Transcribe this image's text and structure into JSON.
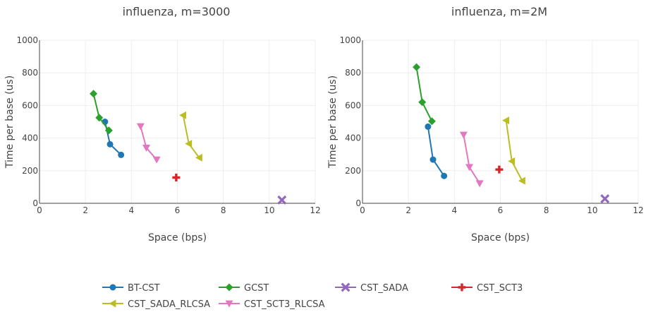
{
  "chart_data": [
    {
      "type": "line",
      "title": "influenza, m=3000",
      "xlabel": "Space (bps)",
      "ylabel": "Time per base (us)",
      "xlim": [
        0,
        12
      ],
      "ylim": [
        0,
        1000
      ],
      "xticks": [
        "0",
        "2",
        "4",
        "6",
        "8",
        "10",
        "12"
      ],
      "yticks": [
        "0",
        "200",
        "400",
        "600",
        "800",
        "1000"
      ],
      "grid": true,
      "series": [
        {
          "name": "BT-CST",
          "color": "#1f77b4",
          "marker": "circle",
          "x": [
            2.85,
            3.07,
            3.55
          ],
          "y": [
            500,
            362,
            297
          ]
        },
        {
          "name": "GCST",
          "color": "#2ca02c",
          "marker": "diamond",
          "x": [
            2.35,
            2.6,
            3.02
          ],
          "y": [
            672,
            525,
            447
          ]
        },
        {
          "name": "CST_SADA",
          "color": "#9467bd",
          "marker": "x",
          "x": [
            10.55
          ],
          "y": [
            20
          ]
        },
        {
          "name": "CST_SCT3",
          "color": "#d62728",
          "marker": "cross",
          "x": [
            5.95
          ],
          "y": [
            158
          ]
        },
        {
          "name": "CST_SADA_RLCSA",
          "color": "#bcbd22",
          "marker": "triangle-left",
          "x": [
            6.25,
            6.5,
            6.95
          ],
          "y": [
            540,
            365,
            280
          ]
        },
        {
          "name": "CST_SCT3_RLCSA",
          "color": "#e377c2",
          "marker": "triangle-down",
          "x": [
            4.4,
            4.65,
            5.1
          ],
          "y": [
            472,
            340,
            268
          ]
        }
      ]
    },
    {
      "type": "line",
      "title": "influenza, m=2M",
      "xlabel": "Space (bps)",
      "ylabel": "Time per base (us)",
      "xlim": [
        0,
        12
      ],
      "ylim": [
        0,
        1000
      ],
      "xticks": [
        "0",
        "2",
        "4",
        "6",
        "8",
        "10",
        "12"
      ],
      "yticks": [
        "0",
        "200",
        "400",
        "600",
        "800",
        "1000"
      ],
      "grid": true,
      "series": [
        {
          "name": "BT-CST",
          "color": "#1f77b4",
          "marker": "circle",
          "x": [
            2.85,
            3.07,
            3.55
          ],
          "y": [
            470,
            268,
            168
          ]
        },
        {
          "name": "GCST",
          "color": "#2ca02c",
          "marker": "diamond",
          "x": [
            2.35,
            2.6,
            3.02
          ],
          "y": [
            835,
            620,
            503
          ]
        },
        {
          "name": "CST_SADA",
          "color": "#9467bd",
          "marker": "x",
          "x": [
            10.55
          ],
          "y": [
            28
          ]
        },
        {
          "name": "CST_SCT3",
          "color": "#d62728",
          "marker": "cross",
          "x": [
            5.95
          ],
          "y": [
            207
          ]
        },
        {
          "name": "CST_SADA_RLCSA",
          "color": "#bcbd22",
          "marker": "triangle-left",
          "x": [
            6.25,
            6.5,
            6.95
          ],
          "y": [
            508,
            258,
            138
          ]
        },
        {
          "name": "CST_SCT3_RLCSA",
          "color": "#e377c2",
          "marker": "triangle-down",
          "x": [
            4.4,
            4.65,
            5.1
          ],
          "y": [
            420,
            222,
            122
          ]
        }
      ]
    }
  ],
  "legend": {
    "placement": "bottom",
    "entries": [
      {
        "name": "BT-CST",
        "color": "#1f77b4",
        "marker": "circle"
      },
      {
        "name": "GCST",
        "color": "#2ca02c",
        "marker": "diamond"
      },
      {
        "name": "CST_SADA",
        "color": "#9467bd",
        "marker": "x"
      },
      {
        "name": "CST_SCT3",
        "color": "#d62728",
        "marker": "cross"
      },
      {
        "name": "CST_SADA_RLCSA",
        "color": "#bcbd22",
        "marker": "triangle-left"
      },
      {
        "name": "CST_SCT3_RLCSA",
        "color": "#e377c2",
        "marker": "triangle-down"
      }
    ]
  }
}
